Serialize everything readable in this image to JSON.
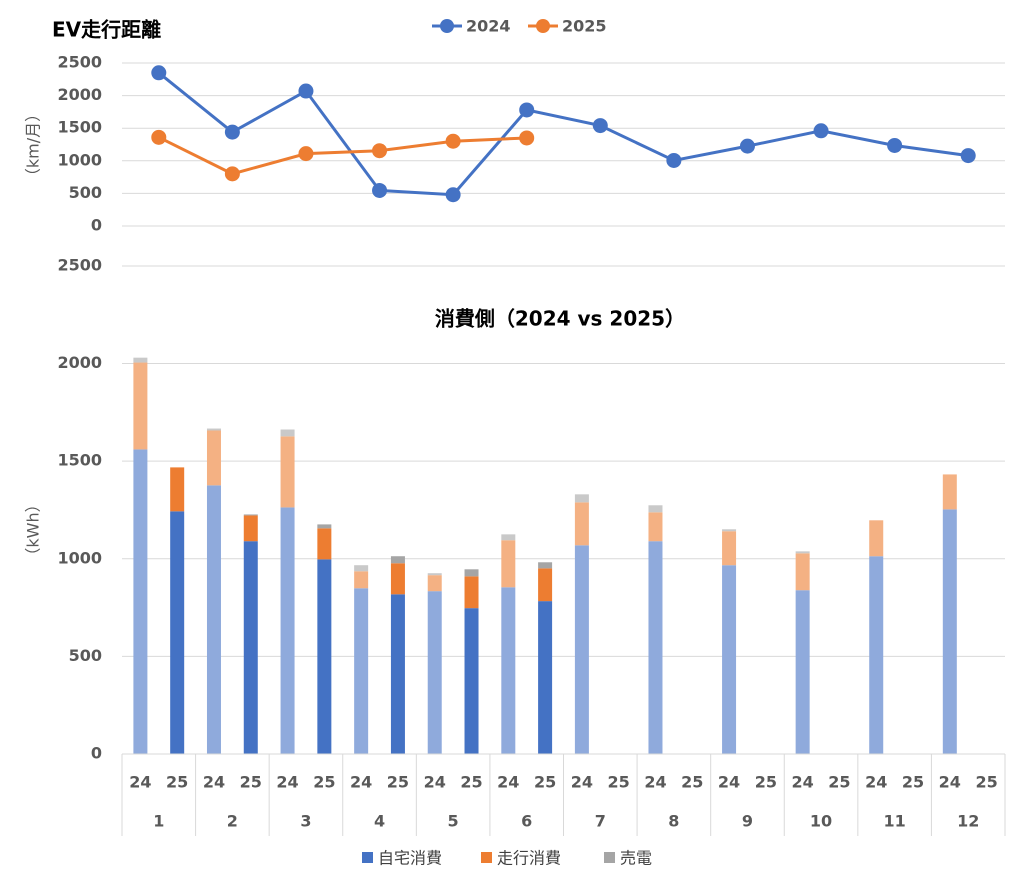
{
  "chart_data": [
    {
      "type": "line",
      "title": "EV走行距離",
      "y_label": "（km/月）",
      "categories": [
        null,
        null,
        null,
        null,
        null,
        null,
        null,
        null,
        null,
        null,
        null,
        null
      ],
      "series": [
        {
          "name": "2024",
          "color": "#4472c4",
          "values": [
            2350,
            1440,
            2070,
            545,
            480,
            1780,
            1540,
            1005,
            1225,
            1460,
            1235,
            1080
          ]
        },
        {
          "name": "2025",
          "color": "#ed7d31",
          "values": [
            1360,
            800,
            1110,
            1155,
            1300,
            1350,
            null,
            null,
            null,
            null,
            null,
            null
          ]
        }
      ],
      "ylim": [
        0,
        2500
      ],
      "yticks": [
        0,
        500,
        1000,
        1500,
        2000,
        2500
      ],
      "grid": true,
      "legend": "top",
      "annotations": [
        "2500"
      ]
    },
    {
      "type": "stacked_bar",
      "title": "消費側（2024 vs 2025）",
      "y_label": "（kWh）",
      "categories": [
        "24",
        "25",
        "24",
        "25",
        "24",
        "25",
        "24",
        "25",
        "24",
        "25",
        "24",
        "25",
        "24",
        "25",
        "24",
        "25",
        "24",
        "25",
        "24",
        "25",
        "24",
        "25",
        "24",
        "25"
      ],
      "groups": [
        "1",
        "2",
        "3",
        "4",
        "5",
        "6",
        "7",
        "8",
        "9",
        "10",
        "11",
        "12"
      ],
      "series": [
        {
          "name": "自宅消費",
          "color": "#4472c4",
          "light_color": "#8faadc",
          "values": [
            1560,
            1243,
            1376,
            1090,
            1263,
            997,
            849,
            818,
            834,
            747,
            854,
            783,
            1069,
            null,
            1090,
            null,
            967,
            null,
            839,
            null,
            1013,
            null,
            1253,
            null
          ]
        },
        {
          "name": "走行消費",
          "color": "#ed7d31",
          "light_color": "#f4b183",
          "values": [
            445,
            225,
            281,
            132,
            364,
            159,
            87,
            159,
            82,
            163,
            241,
            168,
            220,
            null,
            148,
            null,
            174,
            null,
            189,
            null,
            184,
            null,
            179,
            null
          ]
        },
        {
          "name": "売電",
          "color": "#a5a5a5",
          "light_color": "#c9c9c9",
          "values": [
            25,
            0,
            10,
            5,
            35,
            20,
            31,
            36,
            10,
            36,
            30,
            31,
            41,
            null,
            36,
            null,
            10,
            null,
            10,
            null,
            0,
            null,
            0,
            null
          ]
        }
      ],
      "ylim": [
        0,
        2100
      ],
      "yticks": [
        0,
        500,
        1000,
        1500,
        2000
      ],
      "grid": true,
      "legend": "bottom"
    }
  ]
}
